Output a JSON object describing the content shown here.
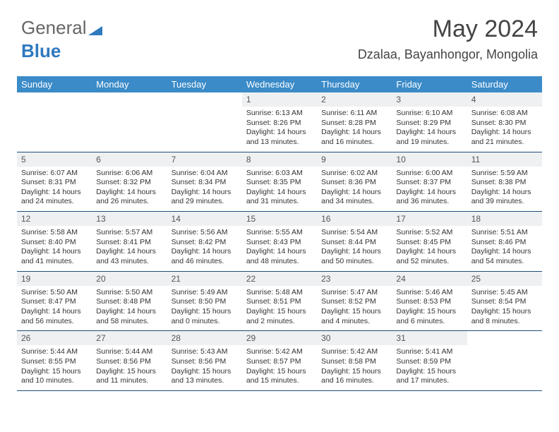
{
  "logo": {
    "part1": "General",
    "part2": "Blue"
  },
  "header": {
    "month_title": "May 2024",
    "location": "Dzalaa, Bayanhongor, Mongolia"
  },
  "colors": {
    "header_bg": "#3b8bc8",
    "header_text": "#ffffff",
    "daynum_bg": "#eef0f2",
    "row_border": "#1f4e79",
    "logo_accent": "#2f79bf"
  },
  "day_headers": [
    "Sunday",
    "Monday",
    "Tuesday",
    "Wednesday",
    "Thursday",
    "Friday",
    "Saturday"
  ],
  "weeks": [
    [
      {
        "empty": true
      },
      {
        "empty": true
      },
      {
        "empty": true
      },
      {
        "n": "1",
        "sunrise": "6:13 AM",
        "sunset": "8:26 PM",
        "daylight": "14 hours and 13 minutes."
      },
      {
        "n": "2",
        "sunrise": "6:11 AM",
        "sunset": "8:28 PM",
        "daylight": "14 hours and 16 minutes."
      },
      {
        "n": "3",
        "sunrise": "6:10 AM",
        "sunset": "8:29 PM",
        "daylight": "14 hours and 19 minutes."
      },
      {
        "n": "4",
        "sunrise": "6:08 AM",
        "sunset": "8:30 PM",
        "daylight": "14 hours and 21 minutes."
      }
    ],
    [
      {
        "n": "5",
        "sunrise": "6:07 AM",
        "sunset": "8:31 PM",
        "daylight": "14 hours and 24 minutes."
      },
      {
        "n": "6",
        "sunrise": "6:06 AM",
        "sunset": "8:32 PM",
        "daylight": "14 hours and 26 minutes."
      },
      {
        "n": "7",
        "sunrise": "6:04 AM",
        "sunset": "8:34 PM",
        "daylight": "14 hours and 29 minutes."
      },
      {
        "n": "8",
        "sunrise": "6:03 AM",
        "sunset": "8:35 PM",
        "daylight": "14 hours and 31 minutes."
      },
      {
        "n": "9",
        "sunrise": "6:02 AM",
        "sunset": "8:36 PM",
        "daylight": "14 hours and 34 minutes."
      },
      {
        "n": "10",
        "sunrise": "6:00 AM",
        "sunset": "8:37 PM",
        "daylight": "14 hours and 36 minutes."
      },
      {
        "n": "11",
        "sunrise": "5:59 AM",
        "sunset": "8:38 PM",
        "daylight": "14 hours and 39 minutes."
      }
    ],
    [
      {
        "n": "12",
        "sunrise": "5:58 AM",
        "sunset": "8:40 PM",
        "daylight": "14 hours and 41 minutes."
      },
      {
        "n": "13",
        "sunrise": "5:57 AM",
        "sunset": "8:41 PM",
        "daylight": "14 hours and 43 minutes."
      },
      {
        "n": "14",
        "sunrise": "5:56 AM",
        "sunset": "8:42 PM",
        "daylight": "14 hours and 46 minutes."
      },
      {
        "n": "15",
        "sunrise": "5:55 AM",
        "sunset": "8:43 PM",
        "daylight": "14 hours and 48 minutes."
      },
      {
        "n": "16",
        "sunrise": "5:54 AM",
        "sunset": "8:44 PM",
        "daylight": "14 hours and 50 minutes."
      },
      {
        "n": "17",
        "sunrise": "5:52 AM",
        "sunset": "8:45 PM",
        "daylight": "14 hours and 52 minutes."
      },
      {
        "n": "18",
        "sunrise": "5:51 AM",
        "sunset": "8:46 PM",
        "daylight": "14 hours and 54 minutes."
      }
    ],
    [
      {
        "n": "19",
        "sunrise": "5:50 AM",
        "sunset": "8:47 PM",
        "daylight": "14 hours and 56 minutes."
      },
      {
        "n": "20",
        "sunrise": "5:50 AM",
        "sunset": "8:48 PM",
        "daylight": "14 hours and 58 minutes."
      },
      {
        "n": "21",
        "sunrise": "5:49 AM",
        "sunset": "8:50 PM",
        "daylight": "15 hours and 0 minutes."
      },
      {
        "n": "22",
        "sunrise": "5:48 AM",
        "sunset": "8:51 PM",
        "daylight": "15 hours and 2 minutes."
      },
      {
        "n": "23",
        "sunrise": "5:47 AM",
        "sunset": "8:52 PM",
        "daylight": "15 hours and 4 minutes."
      },
      {
        "n": "24",
        "sunrise": "5:46 AM",
        "sunset": "8:53 PM",
        "daylight": "15 hours and 6 minutes."
      },
      {
        "n": "25",
        "sunrise": "5:45 AM",
        "sunset": "8:54 PM",
        "daylight": "15 hours and 8 minutes."
      }
    ],
    [
      {
        "n": "26",
        "sunrise": "5:44 AM",
        "sunset": "8:55 PM",
        "daylight": "15 hours and 10 minutes."
      },
      {
        "n": "27",
        "sunrise": "5:44 AM",
        "sunset": "8:56 PM",
        "daylight": "15 hours and 11 minutes."
      },
      {
        "n": "28",
        "sunrise": "5:43 AM",
        "sunset": "8:56 PM",
        "daylight": "15 hours and 13 minutes."
      },
      {
        "n": "29",
        "sunrise": "5:42 AM",
        "sunset": "8:57 PM",
        "daylight": "15 hours and 15 minutes."
      },
      {
        "n": "30",
        "sunrise": "5:42 AM",
        "sunset": "8:58 PM",
        "daylight": "15 hours and 16 minutes."
      },
      {
        "n": "31",
        "sunrise": "5:41 AM",
        "sunset": "8:59 PM",
        "daylight": "15 hours and 17 minutes."
      },
      {
        "empty": true
      }
    ]
  ],
  "labels": {
    "sunrise": "Sunrise:",
    "sunset": "Sunset:",
    "daylight": "Daylight:"
  }
}
